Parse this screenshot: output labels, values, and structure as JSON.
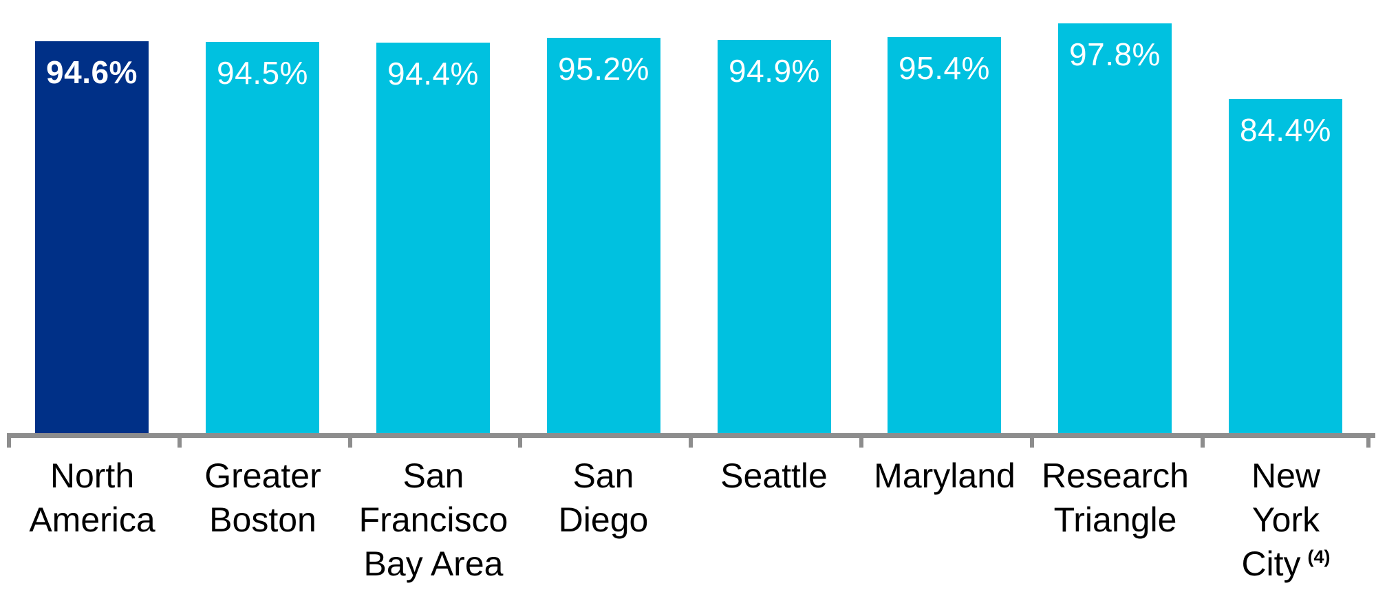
{
  "chart_data": {
    "type": "bar",
    "title": "",
    "xlabel": "",
    "ylabel": "",
    "legend": false,
    "grid": false,
    "y_axis_visible": false,
    "baseline_axis_visible": true,
    "categories": [
      "North America",
      "Greater Boston",
      "San Francisco Bay Area",
      "San Diego",
      "Seattle",
      "Maryland",
      "Research Triangle",
      "New York City (4)"
    ],
    "values": [
      94.6,
      94.5,
      94.4,
      95.2,
      94.9,
      95.4,
      97.8,
      84.4
    ],
    "bars": [
      {
        "label_lines": [
          "North",
          "America"
        ],
        "label_sup": "",
        "value": 94.6,
        "value_label": "94.6%",
        "color": "#003087",
        "emphasis": true
      },
      {
        "label_lines": [
          "Greater",
          "Boston"
        ],
        "label_sup": "",
        "value": 94.5,
        "value_label": "94.5%",
        "color": "#00c1e0",
        "emphasis": false
      },
      {
        "label_lines": [
          "San",
          "Francisco",
          "Bay Area"
        ],
        "label_sup": "",
        "value": 94.4,
        "value_label": "94.4%",
        "color": "#00c1e0",
        "emphasis": false
      },
      {
        "label_lines": [
          "San",
          "Diego"
        ],
        "label_sup": "",
        "value": 95.2,
        "value_label": "95.2%",
        "color": "#00c1e0",
        "emphasis": false
      },
      {
        "label_lines": [
          "Seattle"
        ],
        "label_sup": "",
        "value": 94.9,
        "value_label": "94.9%",
        "color": "#00c1e0",
        "emphasis": false
      },
      {
        "label_lines": [
          "Maryland"
        ],
        "label_sup": "",
        "value": 95.4,
        "value_label": "95.4%",
        "color": "#00c1e0",
        "emphasis": false
      },
      {
        "label_lines": [
          "Research",
          "Triangle"
        ],
        "label_sup": "",
        "value": 97.8,
        "value_label": "97.8%",
        "color": "#00c1e0",
        "emphasis": false
      },
      {
        "label_lines": [
          "New",
          "York",
          "City"
        ],
        "label_sup": "(4)",
        "value": 84.4,
        "value_label": "84.4%",
        "color": "#00c1e0",
        "emphasis": false
      }
    ],
    "colors": {
      "highlight_bar": "#003087",
      "default_bar": "#00c1e0",
      "axis": "#8d8d8d",
      "category_text": "#000000",
      "value_text": "#ffffff",
      "background": "#ffffff"
    }
  }
}
